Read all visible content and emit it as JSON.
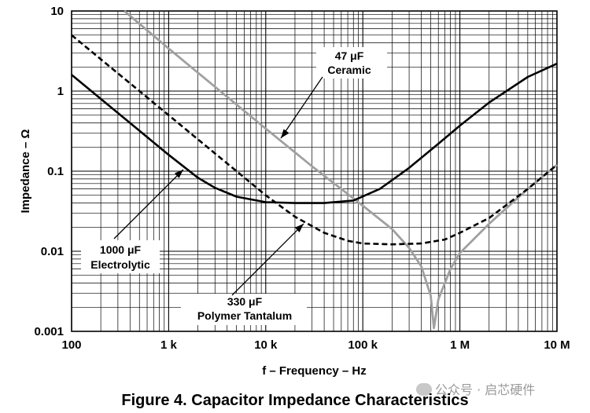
{
  "chart_data": {
    "type": "line",
    "title": "Figure 4. Capacitor Impedance Characteristics",
    "xlabel": "f – Frequency – Hz",
    "ylabel": "Impedance – Ω",
    "xscale": "log",
    "yscale": "log",
    "xlim": [
      100,
      10000000
    ],
    "ylim": [
      0.001,
      10
    ],
    "grid": true,
    "xticks": [
      {
        "value": 100,
        "label": "100"
      },
      {
        "value": 1000,
        "label": "1 k"
      },
      {
        "value": 10000,
        "label": "10 k"
      },
      {
        "value": 100000,
        "label": "100 k"
      },
      {
        "value": 1000000,
        "label": "1 M"
      },
      {
        "value": 10000000,
        "label": "10 M"
      }
    ],
    "yticks": [
      {
        "value": 10,
        "label": "10"
      },
      {
        "value": 1,
        "label": "1"
      },
      {
        "value": 0.1,
        "label": "0.1"
      },
      {
        "value": 0.01,
        "label": "0.01"
      },
      {
        "value": 0.001,
        "label": "0.001"
      }
    ],
    "series": [
      {
        "name": "1000 μF Electrolytic",
        "label_lines": [
          "1000 μF",
          "Electrolytic"
        ],
        "color": "#000000",
        "style": "solid",
        "x": [
          100,
          200,
          500,
          1000,
          2000,
          3000,
          5000,
          10000,
          20000,
          40000,
          80000,
          150000,
          300000,
          600000,
          1000000,
          2000000,
          5000000,
          10000000
        ],
        "y": [
          1.6,
          0.8,
          0.32,
          0.16,
          0.083,
          0.062,
          0.048,
          0.041,
          0.04,
          0.04,
          0.043,
          0.06,
          0.11,
          0.22,
          0.37,
          0.72,
          1.5,
          2.2
        ]
      },
      {
        "name": "330 μF Polymer Tantalum",
        "label_lines": [
          "330 μF",
          "Polymer Tantalum"
        ],
        "color": "#000000",
        "style": "dashed",
        "x": [
          100,
          200,
          500,
          1000,
          2000,
          5000,
          10000,
          20000,
          40000,
          70000,
          100000,
          200000,
          400000,
          700000,
          1000000,
          2000000,
          5000000,
          10000000
        ],
        "y": [
          5,
          2.5,
          1.0,
          0.5,
          0.25,
          0.1,
          0.05,
          0.027,
          0.017,
          0.0135,
          0.0125,
          0.0122,
          0.0125,
          0.014,
          0.017,
          0.026,
          0.06,
          0.12
        ]
      },
      {
        "name": "47 μF Ceramic",
        "label_lines": [
          "47 μF",
          "Ceramic"
        ],
        "color": "#a0a0a0",
        "style": "solid",
        "x": [
          350,
          1000,
          3000,
          10000,
          30000,
          100000,
          200000,
          300000,
          400000,
          500000,
          540000,
          600000,
          800000,
          1000000,
          2000000,
          5000000,
          10000000
        ],
        "y": [
          10,
          3.4,
          1.13,
          0.34,
          0.115,
          0.037,
          0.019,
          0.011,
          0.0065,
          0.0028,
          0.0011,
          0.0025,
          0.006,
          0.0095,
          0.022,
          0.06,
          0.12
        ]
      }
    ],
    "annotations": [
      {
        "text_lines": [
          "47 μF",
          "Ceramic"
        ],
        "arrow_to": {
          "x": 15000,
          "y": 0.3
        }
      },
      {
        "text_lines": [
          "1000 μF",
          "Electrolytic"
        ],
        "arrow_to": {
          "x": 1300,
          "y": 0.12
        }
      },
      {
        "text_lines": [
          "330 μF",
          "Polymer Tantalum"
        ],
        "arrow_to": {
          "x": 25000,
          "y": 0.03
        }
      }
    ]
  },
  "caption": "Figure 4. Capacitor Impedance Characteristics",
  "watermark": "公众号 · 启芯硬件"
}
